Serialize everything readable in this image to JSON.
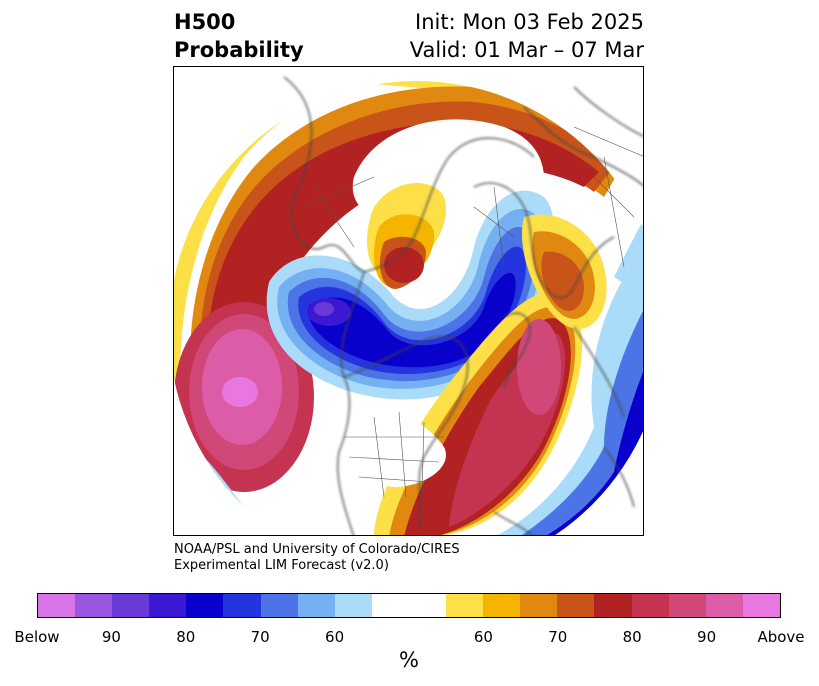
{
  "header": {
    "title_line1": "H500",
    "title_line2": "Probability",
    "init": "Init: Mon 03 Feb 2025",
    "valid": "Valid: 01 Mar – 07 Mar"
  },
  "credit": {
    "line1": "NOAA/PSL and University of Colorado/CIRES",
    "line2": "Experimental LIM Forecast (v2.0)"
  },
  "colorbar": {
    "unit": "%",
    "colors_below": [
      "#d873e8",
      "#9a56e0",
      "#6a3ad8",
      "#3a18d4",
      "#0a00cc",
      "#2434de",
      "#4c74e6",
      "#74b0f2",
      "#aadcfa"
    ],
    "color_neutral": "#ffffff",
    "colors_above": [
      "#fde048",
      "#f4b400",
      "#e08810",
      "#c8541a",
      "#b22222",
      "#c43350",
      "#d04878",
      "#dc5ca8",
      "#e878e0"
    ],
    "tick_labels": [
      "Below",
      "90",
      "80",
      "70",
      "60",
      "60",
      "70",
      "80",
      "90",
      "Above"
    ]
  },
  "map": {
    "projection": "north-polar-stereographic",
    "field": "500 hPa height probability"
  }
}
